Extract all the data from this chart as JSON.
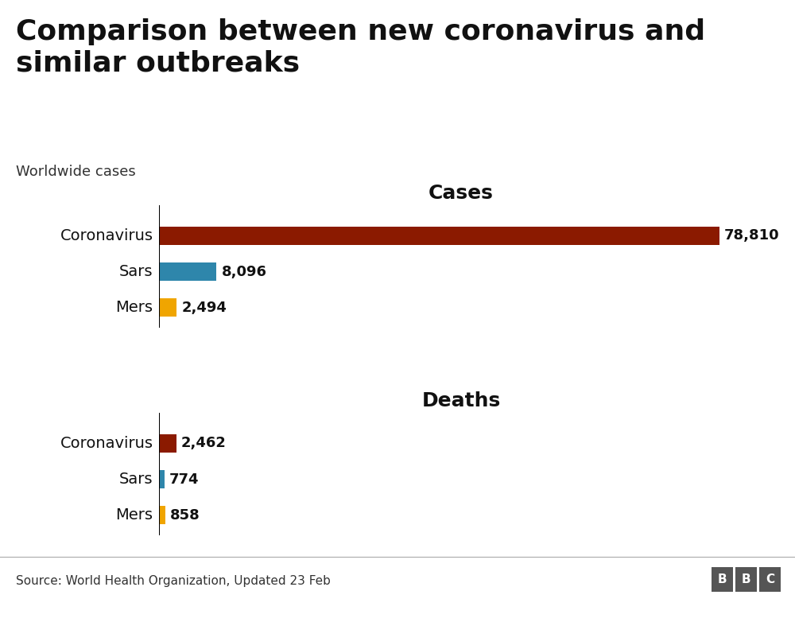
{
  "title": "Comparison between new coronavirus and\nsimilar outbreaks",
  "subtitle": "Worldwide cases",
  "cases_labels": [
    "Coronavirus",
    "Sars",
    "Mers"
  ],
  "cases_values": [
    78810,
    8096,
    2494
  ],
  "cases_colors": [
    "#8B1A00",
    "#2E86AB",
    "#F0A500"
  ],
  "cases_value_labels": [
    "78,810",
    "8,096",
    "2,494"
  ],
  "deaths_labels": [
    "Coronavirus",
    "Sars",
    "Mers"
  ],
  "deaths_values": [
    2462,
    774,
    858
  ],
  "deaths_colors": [
    "#8B1A00",
    "#2E86AB",
    "#F0A500"
  ],
  "deaths_value_labels": [
    "2,462",
    "774",
    "858"
  ],
  "section_cases_title": "Cases",
  "section_deaths_title": "Deaths",
  "source_text": "Source: World Health Organization, Updated 23 Feb",
  "background_color": "#ffffff",
  "bar_height": 0.52,
  "title_fontsize": 26,
  "subtitle_fontsize": 13,
  "label_fontsize": 14,
  "value_fontsize": 13,
  "section_fontsize": 18,
  "source_fontsize": 11,
  "xlim": 85000
}
